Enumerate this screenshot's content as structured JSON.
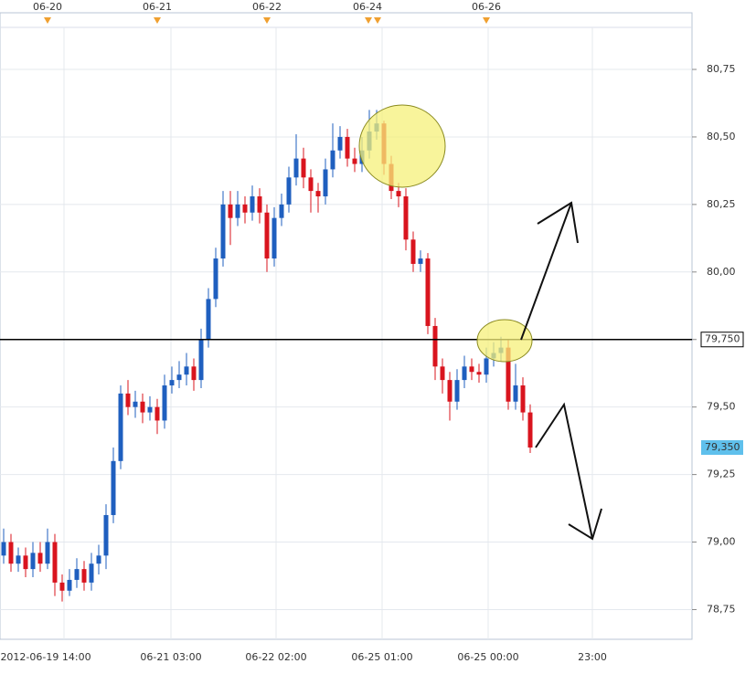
{
  "chart_data": {
    "type": "candlestick",
    "ylim": [
      78.64,
      80.98
    ],
    "yticks": [
      {
        "value": 80.75,
        "label": "80,75"
      },
      {
        "value": 80.5,
        "label": "80,50"
      },
      {
        "value": 80.25,
        "label": "80,25"
      },
      {
        "value": 80.0,
        "label": "80,00"
      },
      {
        "value": 79.75,
        "label": "79,75"
      },
      {
        "value": 79.5,
        "label": "79,50"
      },
      {
        "value": 79.25,
        "label": "79,25"
      },
      {
        "value": 79.0,
        "label": "79,00"
      },
      {
        "value": 78.75,
        "label": "78,75"
      }
    ],
    "x_labels": [
      "2012-06-19 14:00",
      "06-21 03:00",
      "06-22 02:00",
      "06-25 01:00",
      "06-25 00:00",
      "23:00"
    ],
    "top_labels": [
      "06-20",
      "06-21",
      "06-22",
      "06-24",
      "06-26"
    ],
    "level_line": {
      "value": 79.75,
      "label": "79,750"
    },
    "last_price": {
      "value": 79.35,
      "label": "79,350"
    },
    "up_color": "#1f5fbf",
    "down_color": "#d9141e",
    "grid": true,
    "candles": [
      [
        78.95,
        79.05,
        78.92,
        79.0
      ],
      [
        79.0,
        79.03,
        78.89,
        78.92
      ],
      [
        78.92,
        78.98,
        78.89,
        78.95
      ],
      [
        78.95,
        78.98,
        78.87,
        78.9
      ],
      [
        78.9,
        79.0,
        78.87,
        78.96
      ],
      [
        78.96,
        79.0,
        78.89,
        78.92
      ],
      [
        78.92,
        79.05,
        78.9,
        79.0
      ],
      [
        79.0,
        79.03,
        78.8,
        78.85
      ],
      [
        78.85,
        78.88,
        78.78,
        78.82
      ],
      [
        78.82,
        78.9,
        78.8,
        78.86
      ],
      [
        78.86,
        78.94,
        78.83,
        78.9
      ],
      [
        78.9,
        78.93,
        78.82,
        78.85
      ],
      [
        78.85,
        78.96,
        78.82,
        78.92
      ],
      [
        78.92,
        78.99,
        78.88,
        78.95
      ],
      [
        78.95,
        79.14,
        78.9,
        79.1
      ],
      [
        79.1,
        79.35,
        79.07,
        79.3
      ],
      [
        79.3,
        79.58,
        79.27,
        79.55
      ],
      [
        79.55,
        79.6,
        79.47,
        79.5
      ],
      [
        79.5,
        79.56,
        79.46,
        79.52
      ],
      [
        79.52,
        79.55,
        79.44,
        79.48
      ],
      [
        79.48,
        79.54,
        79.45,
        79.5
      ],
      [
        79.5,
        79.53,
        79.4,
        79.45
      ],
      [
        79.45,
        79.62,
        79.42,
        79.58
      ],
      [
        79.58,
        79.65,
        79.55,
        79.6
      ],
      [
        79.6,
        79.67,
        79.57,
        79.62
      ],
      [
        79.62,
        79.7,
        79.58,
        79.65
      ],
      [
        79.65,
        79.68,
        79.56,
        79.6
      ],
      [
        79.6,
        79.79,
        79.57,
        79.75
      ],
      [
        79.75,
        79.94,
        79.72,
        79.9
      ],
      [
        79.9,
        80.09,
        79.87,
        80.05
      ],
      [
        80.05,
        80.3,
        80.02,
        80.25
      ],
      [
        80.25,
        80.3,
        80.1,
        80.2
      ],
      [
        80.2,
        80.3,
        80.17,
        80.25
      ],
      [
        80.25,
        80.28,
        80.18,
        80.22
      ],
      [
        80.22,
        80.32,
        80.19,
        80.28
      ],
      [
        80.28,
        80.31,
        80.18,
        80.22
      ],
      [
        80.22,
        80.25,
        80.0,
        80.05
      ],
      [
        80.05,
        80.24,
        80.02,
        80.2
      ],
      [
        80.2,
        80.29,
        80.17,
        80.25
      ],
      [
        80.25,
        80.39,
        80.22,
        80.35
      ],
      [
        80.35,
        80.51,
        80.32,
        80.42
      ],
      [
        80.42,
        80.46,
        80.31,
        80.35
      ],
      [
        80.35,
        80.38,
        80.22,
        80.3
      ],
      [
        80.3,
        80.33,
        80.22,
        80.28
      ],
      [
        80.28,
        80.42,
        80.25,
        80.38
      ],
      [
        80.38,
        80.55,
        80.35,
        80.45
      ],
      [
        80.45,
        80.54,
        80.42,
        80.5
      ],
      [
        80.5,
        80.53,
        80.39,
        80.42
      ],
      [
        80.42,
        80.46,
        80.37,
        80.4
      ],
      [
        80.4,
        80.5,
        80.37,
        80.45
      ],
      [
        80.45,
        80.6,
        80.42,
        80.52
      ],
      [
        80.52,
        80.6,
        80.49,
        80.55
      ],
      [
        80.55,
        80.56,
        80.36,
        80.4
      ],
      [
        80.4,
        80.43,
        80.27,
        80.3
      ],
      [
        80.3,
        80.33,
        80.24,
        80.28
      ],
      [
        80.28,
        80.31,
        80.08,
        80.12
      ],
      [
        80.12,
        80.15,
        80.0,
        80.03
      ],
      [
        80.03,
        80.08,
        80.0,
        80.05
      ],
      [
        80.05,
        80.07,
        79.77,
        79.8
      ],
      [
        79.8,
        79.83,
        79.6,
        79.65
      ],
      [
        79.65,
        79.68,
        79.55,
        79.6
      ],
      [
        79.6,
        79.63,
        79.45,
        79.52
      ],
      [
        79.52,
        79.64,
        79.49,
        79.6
      ],
      [
        79.6,
        79.69,
        79.57,
        79.65
      ],
      [
        79.65,
        79.68,
        79.6,
        79.63
      ],
      [
        79.63,
        79.66,
        79.59,
        79.62
      ],
      [
        79.62,
        79.72,
        79.59,
        79.68
      ],
      [
        79.68,
        79.74,
        79.65,
        79.7
      ],
      [
        79.7,
        79.76,
        79.67,
        79.72
      ],
      [
        79.72,
        79.75,
        79.49,
        79.52
      ],
      [
        79.52,
        79.66,
        79.49,
        79.58
      ],
      [
        79.58,
        79.61,
        79.45,
        79.48
      ],
      [
        79.48,
        79.51,
        79.33,
        79.35
      ]
    ]
  }
}
